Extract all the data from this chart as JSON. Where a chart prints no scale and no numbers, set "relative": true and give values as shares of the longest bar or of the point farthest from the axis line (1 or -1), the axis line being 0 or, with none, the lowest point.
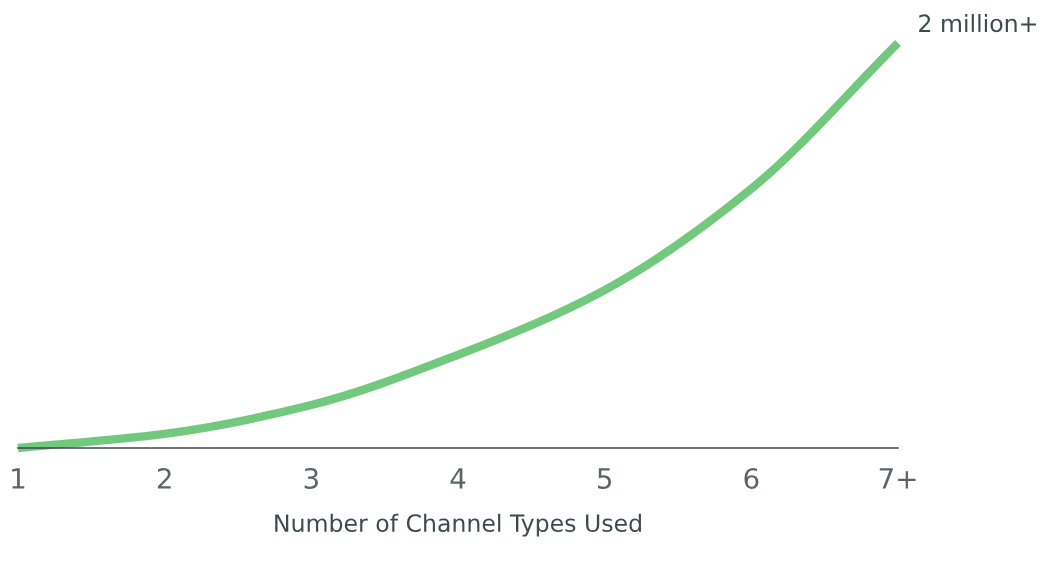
{
  "chart_data": {
    "type": "line",
    "relative": true,
    "xlabel": "Number of Channel Types Used",
    "categories": [
      "1",
      "2",
      "3",
      "4",
      "5",
      "6",
      "7+"
    ],
    "series": [
      {
        "color": "#72c97d",
        "values": [
          0.0,
          0.035,
          0.106,
          0.23,
          0.39,
          0.64,
          1.0
        ]
      }
    ],
    "annotations": [
      {
        "text": "2 million+",
        "x": "7+",
        "y": 1.0
      }
    ],
    "grid": false,
    "legend": false,
    "marker": "none",
    "line_style": "solid",
    "tick_labels": "x"
  }
}
